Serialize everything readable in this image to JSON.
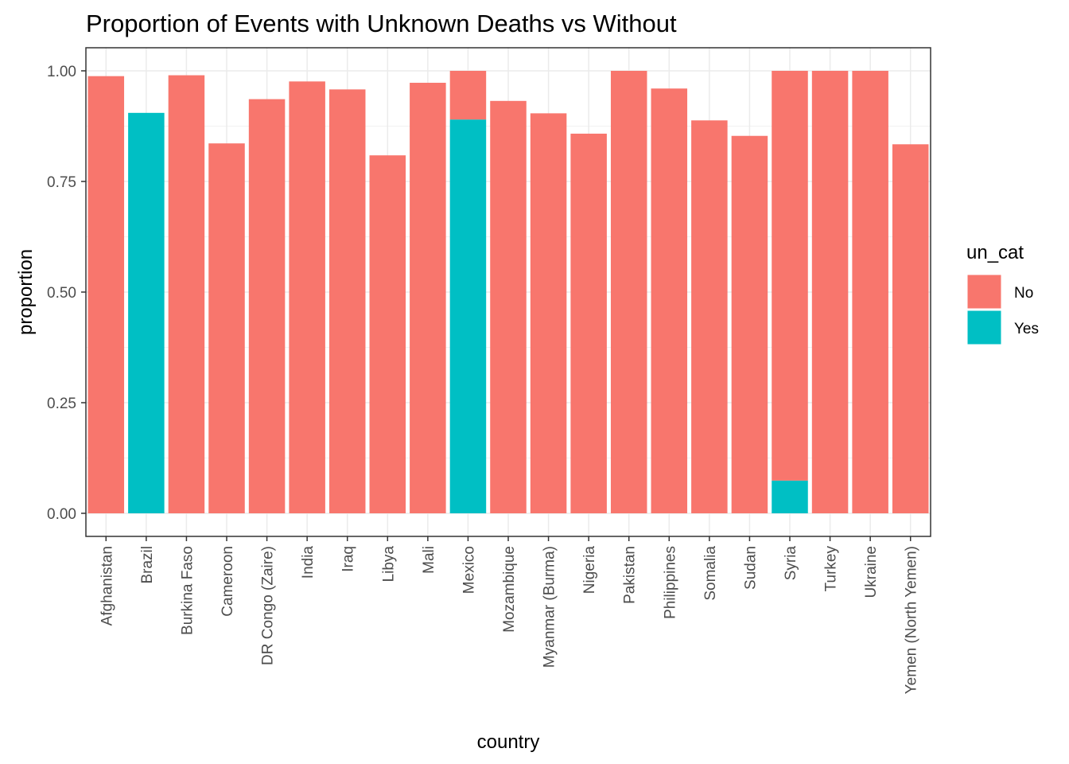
{
  "chart_data": {
    "type": "bar",
    "stacked": true,
    "title": "Proportion of Events with Unknown Deaths vs Without",
    "xlabel": "country",
    "ylabel": "proportion",
    "ylim": [
      0,
      1.0
    ],
    "yticks": [
      "0.00",
      "0.25",
      "0.50",
      "0.75",
      "1.00"
    ],
    "yticks_values": [
      0,
      0.25,
      0.5,
      0.75,
      1.0
    ],
    "grid": true,
    "legend": {
      "title": "un_cat",
      "position": "right"
    },
    "categories": [
      "Afghanistan",
      "Brazil",
      "Burkina Faso",
      "Cameroon",
      "DR Congo (Zaire)",
      "India",
      "Iraq",
      "Libya",
      "Mali",
      "Mexico",
      "Mozambique",
      "Myanmar (Burma)",
      "Nigeria",
      "Pakistan",
      "Philippines",
      "Somalia",
      "Sudan",
      "Syria",
      "Turkey",
      "Ukraine",
      "Yemen (North Yemen)"
    ],
    "series": [
      {
        "name": "No",
        "color": "#F8766D",
        "values": [
          0.988,
          0,
          0.99,
          0.836,
          0.936,
          0.976,
          0.958,
          0.809,
          0.973,
          0.11,
          0.932,
          0.904,
          0.858,
          1.0,
          0.96,
          0.888,
          0.853,
          0.926,
          1.0,
          1.0,
          0.834
        ]
      },
      {
        "name": "Yes",
        "color": "#00BFC4",
        "values": [
          0,
          0.905,
          0,
          0,
          0,
          0,
          0,
          0,
          0,
          0.89,
          0,
          0,
          0,
          0,
          0,
          0,
          0,
          0.074,
          0,
          0,
          0
        ]
      }
    ]
  }
}
